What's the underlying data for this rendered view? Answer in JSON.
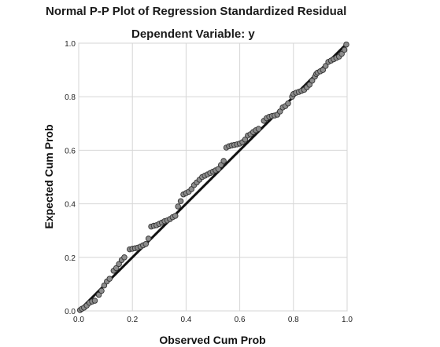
{
  "chart_data": {
    "type": "scatter",
    "title": "Normal P-P Plot of Regression Standardized Residual",
    "subtitle": "Dependent Variable: y",
    "xlabel": "Observed Cum Prob",
    "ylabel": "Expected Cum Prob",
    "xlim": [
      0,
      1
    ],
    "ylim": [
      0,
      1
    ],
    "x_ticks": [
      "0.0",
      "0.2",
      "0.4",
      "0.6",
      "0.8",
      "1.0"
    ],
    "y_ticks": [
      "0.0",
      "0.2",
      "0.4",
      "0.6",
      "0.8",
      "1.0"
    ],
    "grid": true,
    "reference_line": [
      [
        0,
        0
      ],
      [
        1,
        1
      ]
    ],
    "point_color": "#8c8c8c",
    "points": [
      [
        0.005,
        0.003
      ],
      [
        0.012,
        0.008
      ],
      [
        0.02,
        0.012
      ],
      [
        0.03,
        0.02
      ],
      [
        0.04,
        0.03
      ],
      [
        0.05,
        0.035
      ],
      [
        0.06,
        0.038
      ],
      [
        0.075,
        0.06
      ],
      [
        0.085,
        0.075
      ],
      [
        0.095,
        0.095
      ],
      [
        0.105,
        0.11
      ],
      [
        0.115,
        0.12
      ],
      [
        0.13,
        0.15
      ],
      [
        0.14,
        0.16
      ],
      [
        0.15,
        0.175
      ],
      [
        0.16,
        0.19
      ],
      [
        0.17,
        0.2
      ],
      [
        0.19,
        0.23
      ],
      [
        0.2,
        0.232
      ],
      [
        0.21,
        0.234
      ],
      [
        0.22,
        0.236
      ],
      [
        0.23,
        0.24
      ],
      [
        0.24,
        0.245
      ],
      [
        0.25,
        0.25
      ],
      [
        0.26,
        0.27
      ],
      [
        0.27,
        0.315
      ],
      [
        0.28,
        0.318
      ],
      [
        0.29,
        0.32
      ],
      [
        0.3,
        0.325
      ],
      [
        0.31,
        0.33
      ],
      [
        0.32,
        0.335
      ],
      [
        0.33,
        0.338
      ],
      [
        0.34,
        0.343
      ],
      [
        0.35,
        0.35
      ],
      [
        0.36,
        0.355
      ],
      [
        0.37,
        0.39
      ],
      [
        0.38,
        0.41
      ],
      [
        0.39,
        0.435
      ],
      [
        0.4,
        0.44
      ],
      [
        0.41,
        0.445
      ],
      [
        0.42,
        0.455
      ],
      [
        0.43,
        0.47
      ],
      [
        0.44,
        0.48
      ],
      [
        0.45,
        0.49
      ],
      [
        0.46,
        0.5
      ],
      [
        0.47,
        0.505
      ],
      [
        0.48,
        0.51
      ],
      [
        0.49,
        0.515
      ],
      [
        0.5,
        0.52
      ],
      [
        0.51,
        0.525
      ],
      [
        0.52,
        0.53
      ],
      [
        0.53,
        0.545
      ],
      [
        0.54,
        0.56
      ],
      [
        0.55,
        0.61
      ],
      [
        0.56,
        0.615
      ],
      [
        0.57,
        0.618
      ],
      [
        0.58,
        0.62
      ],
      [
        0.59,
        0.622
      ],
      [
        0.6,
        0.625
      ],
      [
        0.61,
        0.63
      ],
      [
        0.62,
        0.64
      ],
      [
        0.63,
        0.655
      ],
      [
        0.64,
        0.66
      ],
      [
        0.65,
        0.668
      ],
      [
        0.66,
        0.675
      ],
      [
        0.67,
        0.68
      ],
      [
        0.69,
        0.71
      ],
      [
        0.7,
        0.72
      ],
      [
        0.71,
        0.725
      ],
      [
        0.72,
        0.728
      ],
      [
        0.73,
        0.73
      ],
      [
        0.74,
        0.733
      ],
      [
        0.75,
        0.745
      ],
      [
        0.76,
        0.76
      ],
      [
        0.77,
        0.765
      ],
      [
        0.78,
        0.775
      ],
      [
        0.795,
        0.8
      ],
      [
        0.8,
        0.81
      ],
      [
        0.81,
        0.815
      ],
      [
        0.82,
        0.818
      ],
      [
        0.83,
        0.822
      ],
      [
        0.84,
        0.826
      ],
      [
        0.85,
        0.835
      ],
      [
        0.86,
        0.845
      ],
      [
        0.87,
        0.86
      ],
      [
        0.88,
        0.875
      ],
      [
        0.885,
        0.885
      ],
      [
        0.89,
        0.89
      ],
      [
        0.9,
        0.895
      ],
      [
        0.91,
        0.9
      ],
      [
        0.92,
        0.915
      ],
      [
        0.93,
        0.93
      ],
      [
        0.94,
        0.935
      ],
      [
        0.95,
        0.94
      ],
      [
        0.96,
        0.945
      ],
      [
        0.97,
        0.95
      ],
      [
        0.98,
        0.96
      ],
      [
        0.99,
        0.975
      ],
      [
        0.997,
        0.995
      ]
    ]
  }
}
